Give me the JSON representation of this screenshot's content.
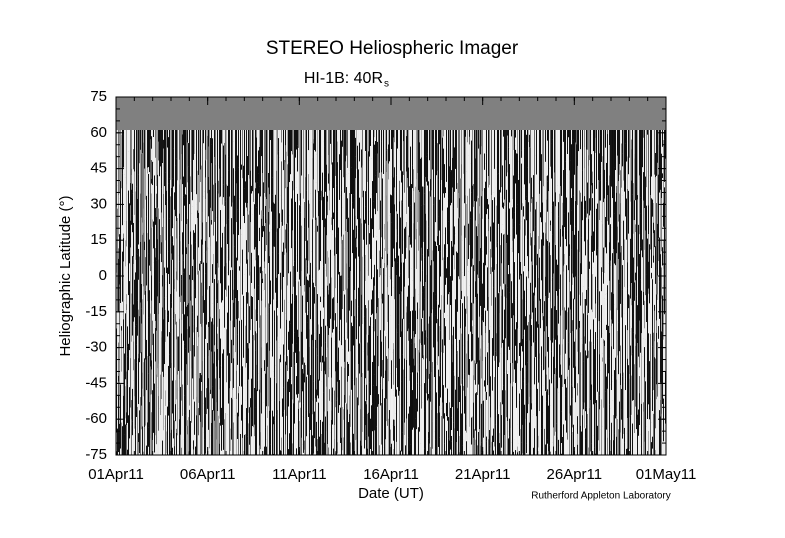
{
  "chart_data": {
    "type": "image",
    "title": "STEREO Heliospheric Imager",
    "subtitle": "HI-1B: 40R",
    "subtitle_subscript": "s",
    "y_label": "Heliographic Latitude (°)",
    "x_label": "Date (UT)",
    "credit": "Rutherford Appleton Laboratory",
    "x_tick_labels": [
      "01Apr11",
      "06Apr11",
      "11Apr11",
      "16Apr11",
      "21Apr11",
      "26Apr11",
      "01May11"
    ],
    "ylim": [
      -75,
      75
    ],
    "yticks": [
      -75,
      -60,
      -45,
      -30,
      -15,
      0,
      15,
      30,
      45,
      60,
      75
    ]
  }
}
